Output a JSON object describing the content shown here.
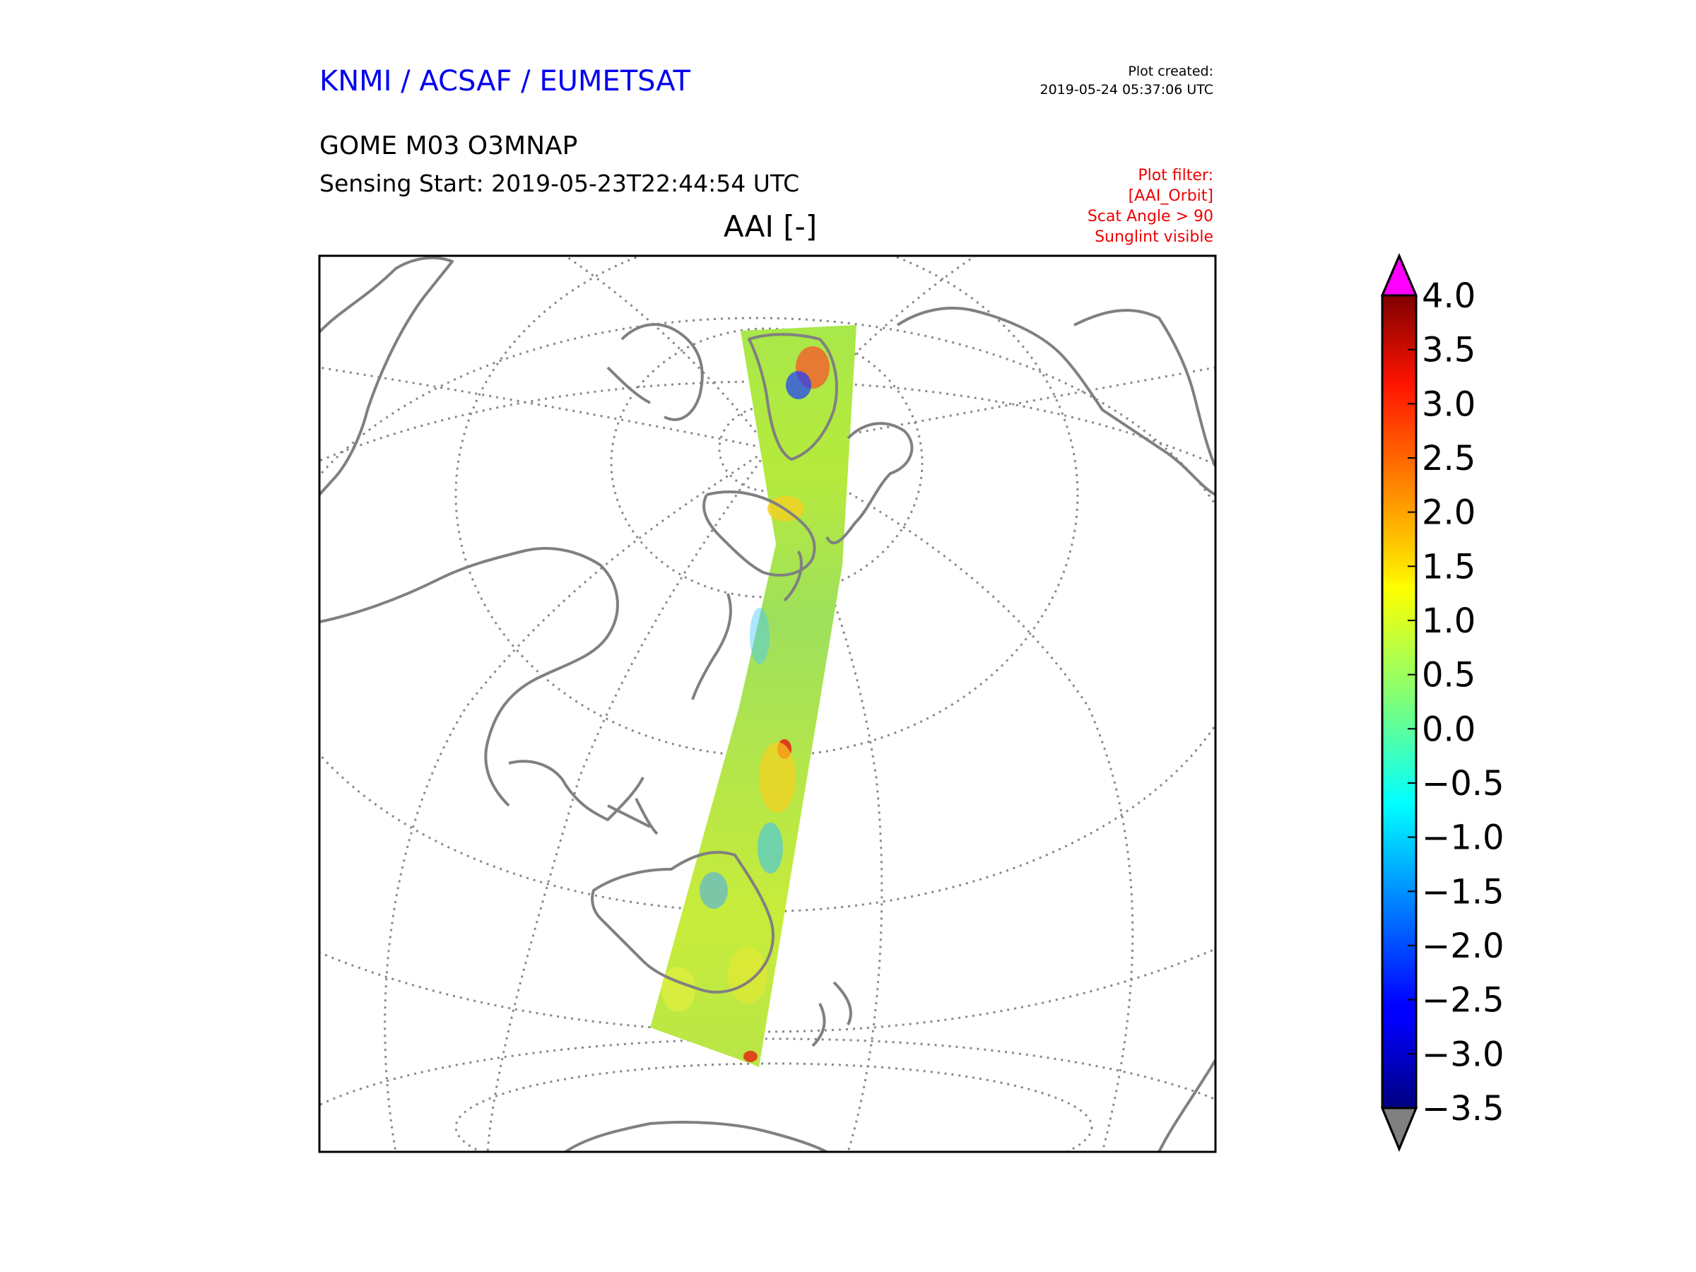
{
  "header": {
    "agency": "KNMI / ACSAF / EUMETSAT",
    "product": "GOME M03 O3MNAP",
    "sensing_start": "Sensing Start: 2019-05-23T22:44:54 UTC",
    "plot_created_label": "Plot created:",
    "plot_created_value": "2019-05-24 05:37:06 UTC"
  },
  "plot_filter": {
    "title": "Plot filter:",
    "lines": [
      "[AAI_Orbit]",
      "Scat Angle > 90",
      "Sunglint visible"
    ]
  },
  "map": {
    "title": "AAI [-]",
    "projection": "orthographic",
    "coastline_color": "#808080",
    "graticule_color": "#888888"
  },
  "colorbar": {
    "min": -3.5,
    "max": 4.0,
    "ticks": [
      "4.0",
      "3.5",
      "3.0",
      "2.5",
      "2.0",
      "1.5",
      "1.0",
      "0.5",
      "0.0",
      "−0.5",
      "−1.0",
      "−1.5",
      "−2.0",
      "−2.5",
      "−3.0",
      "−3.5"
    ],
    "over_color": "#ff00ff",
    "under_color": "#808080",
    "colormap": "jet"
  }
}
